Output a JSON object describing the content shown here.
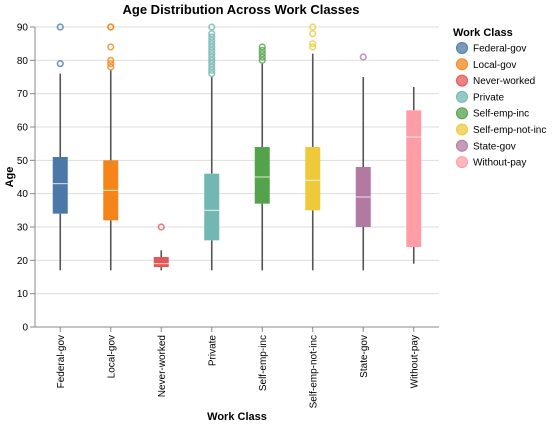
{
  "chart_data": {
    "type": "boxplot",
    "title": "Age Distribution Across Work Classes",
    "xlabel": "Work Class",
    "ylabel": "Age",
    "ylim": [
      0,
      90
    ],
    "yticks": [
      0,
      10,
      20,
      30,
      40,
      50,
      60,
      70,
      80,
      90
    ],
    "grid": true,
    "legend": {
      "title": "Work Class",
      "position": "right"
    },
    "categories": [
      "Federal-gov",
      "Local-gov",
      "Never-worked",
      "Private",
      "Self-emp-inc",
      "Self-emp-not-inc",
      "State-gov",
      "Without-pay"
    ],
    "series": [
      {
        "name": "Federal-gov",
        "color": "#4c78a8",
        "min": 17,
        "q1": 34,
        "median": 43,
        "q3": 51,
        "max": 76,
        "outliers": [
          79,
          90
        ]
      },
      {
        "name": "Local-gov",
        "color": "#f58518",
        "min": 17,
        "q1": 32,
        "median": 41,
        "q3": 50,
        "max": 77,
        "outliers": [
          78,
          79,
          80,
          84,
          90,
          90
        ]
      },
      {
        "name": "Never-worked",
        "color": "#e45756",
        "min": 17,
        "q1": 18,
        "median": 19,
        "q3": 21,
        "max": 23,
        "outliers": [
          30
        ]
      },
      {
        "name": "Private",
        "color": "#72b7b2",
        "min": 17,
        "q1": 26,
        "median": 35,
        "q3": 46,
        "max": 75,
        "outliers": [
          76,
          77,
          78,
          79,
          80,
          81,
          82,
          83,
          84,
          85,
          86,
          87,
          88,
          90
        ]
      },
      {
        "name": "Self-emp-inc",
        "color": "#54a24b",
        "min": 17,
        "q1": 37,
        "median": 45,
        "q3": 54,
        "max": 79,
        "outliers": [
          80,
          81,
          82,
          83,
          84
        ]
      },
      {
        "name": "Self-emp-not-inc",
        "color": "#eeca3b",
        "min": 17,
        "q1": 35,
        "median": 44,
        "q3": 54,
        "max": 82,
        "outliers": [
          84,
          85,
          88,
          90
        ]
      },
      {
        "name": "State-gov",
        "color": "#b279a2",
        "min": 17,
        "q1": 30,
        "median": 39,
        "q3": 48,
        "max": 75,
        "outliers": [
          81
        ]
      },
      {
        "name": "Without-pay",
        "color": "#ff9da6",
        "min": 19,
        "q1": 24,
        "median": 57,
        "q3": 65,
        "max": 72,
        "outliers": []
      }
    ]
  }
}
